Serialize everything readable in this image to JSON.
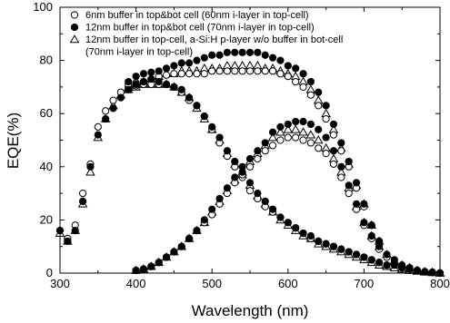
{
  "chart_data": {
    "type": "scatter",
    "xlabel": "Wavelength (nm)",
    "ylabel": "EQE(%)",
    "xlim": [
      300,
      800
    ],
    "ylim": [
      0,
      100
    ],
    "x_ticks": [
      "300",
      "400",
      "500",
      "600",
      "700",
      "800"
    ],
    "y_ticks": [
      "0",
      "20",
      "40",
      "60",
      "80",
      "100"
    ],
    "grid": false,
    "legend_position": "top-left",
    "legend_lines": [
      "6nm buffer in top&bot cell (60nm i-layer in top-cell)",
      "12nm buffer in top&bot cell (70nm i-layer in top-cell)",
      "12nm buffer in top-cell, a-Si:H p-layer w/o buffer in bot-cell",
      "(70nm i-layer in top-cell)"
    ],
    "series": [
      {
        "name": "6nm buffer in top&bot cell (60nm i-layer in top-cell)",
        "marker": "circle-open",
        "top_cell": {
          "x": [
            300,
            310,
            320,
            330,
            340,
            350,
            360,
            370,
            380,
            390,
            400,
            410,
            420,
            430,
            440,
            450,
            460,
            470,
            480,
            490,
            500,
            510,
            520,
            530,
            540,
            550,
            560,
            570,
            580,
            590,
            600,
            610,
            620,
            630,
            640,
            650,
            660,
            670,
            680,
            690,
            700,
            710,
            720,
            730,
            740,
            750,
            760,
            770,
            780,
            790,
            800
          ],
          "y": [
            16,
            13,
            18,
            30,
            41,
            55,
            61,
            65,
            68,
            70,
            70.5,
            71,
            71,
            71,
            71,
            70,
            68,
            65,
            63,
            59,
            54,
            49,
            44,
            40,
            36,
            31,
            28,
            25,
            23,
            21,
            19,
            17,
            15,
            13,
            12,
            11,
            10,
            9,
            8,
            7,
            6,
            5,
            4,
            3,
            3,
            2,
            1.5,
            1,
            0.5,
            0.3,
            0
          ]
        },
        "bottom_cell": {
          "x": [
            400,
            410,
            420,
            430,
            440,
            450,
            460,
            470,
            480,
            490,
            500,
            510,
            520,
            530,
            540,
            550,
            560,
            570,
            580,
            590,
            600,
            610,
            620,
            630,
            640,
            650,
            660,
            670,
            680,
            690,
            700,
            710,
            720,
            730,
            740,
            750,
            760,
            770,
            780,
            790,
            800
          ],
          "y": [
            1,
            1.5,
            2.5,
            4,
            6,
            8,
            10,
            13,
            16,
            19,
            22,
            26,
            30,
            34,
            37,
            40,
            43,
            46,
            48,
            50,
            51,
            51,
            50,
            49,
            47,
            45,
            41,
            36,
            30,
            24,
            18,
            13,
            9,
            6,
            4,
            2.5,
            1.5,
            1,
            0.5,
            0.3,
            0
          ]
        },
        "sum": {
          "x": [
            390,
            400,
            410,
            420,
            430,
            440,
            450,
            460,
            470,
            480,
            490,
            500,
            510,
            520,
            530,
            540,
            550,
            560,
            570,
            580,
            590,
            600,
            610,
            620,
            630,
            640,
            650,
            660,
            670,
            680,
            690,
            700,
            710,
            720
          ],
          "y": [
            71,
            71.5,
            72,
            73,
            74,
            74.5,
            75,
            75,
            75,
            75,
            75,
            76,
            76,
            76,
            76,
            76,
            76,
            76,
            76,
            76,
            75,
            74,
            72,
            70,
            67,
            63,
            58,
            52,
            46,
            40,
            32,
            25,
            18,
            12
          ]
        }
      },
      {
        "name": "12nm buffer in top&bot cell (70nm i-layer in top-cell)",
        "marker": "circle-filled",
        "top_cell": {
          "x": [
            300,
            310,
            320,
            330,
            340,
            350,
            360,
            370,
            380,
            390,
            400,
            410,
            420,
            430,
            440,
            450,
            460,
            470,
            480,
            490,
            500,
            510,
            520,
            530,
            540,
            550,
            560,
            570,
            580,
            590,
            600,
            610,
            620,
            630,
            640,
            650,
            660,
            670,
            680,
            690,
            700,
            710,
            720,
            730,
            740,
            750,
            760,
            770,
            780,
            790,
            800
          ],
          "y": [
            16,
            12,
            16,
            27,
            40,
            52,
            58,
            62,
            66,
            69,
            71,
            72,
            73,
            72,
            71,
            70,
            69,
            66,
            63,
            59,
            55,
            51,
            46,
            42,
            38,
            34,
            30,
            27,
            24,
            21,
            19,
            17,
            15,
            14,
            12,
            11,
            10,
            9,
            8,
            7,
            6,
            5,
            4,
            3,
            3,
            2,
            1.5,
            1,
            0.5,
            0.3,
            0
          ]
        },
        "bottom_cell": {
          "x": [
            400,
            410,
            420,
            430,
            440,
            450,
            460,
            470,
            480,
            490,
            500,
            510,
            520,
            530,
            540,
            550,
            560,
            570,
            580,
            590,
            600,
            610,
            620,
            630,
            640,
            650,
            660,
            670,
            680,
            690,
            700,
            710,
            720,
            730,
            740,
            750,
            760,
            770,
            780,
            790,
            800
          ],
          "y": [
            1,
            1.5,
            2.5,
            4,
            6,
            8,
            10,
            13,
            16,
            20,
            24,
            28,
            32,
            36,
            40,
            43,
            46,
            49,
            53,
            55,
            56,
            57,
            57,
            56,
            54,
            51,
            46,
            40,
            33,
            26,
            19,
            14,
            10,
            7,
            5,
            3,
            2,
            1,
            0.5,
            0.3,
            0
          ]
        },
        "sum": {
          "x": [
            390,
            400,
            410,
            420,
            430,
            440,
            450,
            460,
            470,
            480,
            490,
            500,
            510,
            520,
            530,
            540,
            550,
            560,
            570,
            580,
            590,
            600,
            610,
            620,
            630,
            640,
            650,
            660,
            670,
            680,
            690,
            700,
            710,
            720
          ],
          "y": [
            72,
            74,
            75,
            75.5,
            76,
            77,
            78,
            79,
            79,
            80,
            81,
            82,
            82,
            83,
            83,
            83,
            83,
            83,
            82,
            81,
            80,
            78,
            77,
            75,
            72,
            68,
            63,
            56,
            49,
            42,
            34,
            26,
            18,
            12
          ]
        }
      },
      {
        "name": "12nm buffer in top-cell, a-Si:H p-layer w/o buffer in bot-cell (70nm i-layer in top-cell)",
        "marker": "triangle-open",
        "top_cell": {
          "x": [
            300,
            310,
            320,
            330,
            340,
            350,
            360,
            370,
            380,
            390,
            400,
            410,
            420,
            430,
            440,
            450,
            460,
            470,
            480,
            490,
            500,
            510,
            520,
            530,
            540,
            550,
            560,
            570,
            580,
            590,
            600,
            610,
            620,
            630,
            640,
            650,
            660,
            670,
            680,
            690,
            700,
            710,
            720,
            730,
            740,
            750,
            760,
            770,
            780,
            790,
            800
          ],
          "y": [
            15,
            12,
            16,
            26,
            38,
            51,
            58,
            63,
            67,
            69,
            70,
            71,
            71,
            71,
            71,
            70,
            68,
            66,
            62,
            58,
            54,
            50,
            45,
            41,
            37,
            33,
            29,
            26,
            23,
            20,
            18,
            16,
            14,
            13,
            11,
            10,
            9,
            8,
            7,
            6,
            5,
            4,
            3,
            2.5,
            2,
            1.5,
            1,
            0.7,
            0.4,
            0.2,
            0
          ]
        },
        "bottom_cell": {
          "x": [
            400,
            410,
            420,
            430,
            440,
            450,
            460,
            470,
            480,
            490,
            500,
            510,
            520,
            530,
            540,
            550,
            560,
            570,
            580,
            590,
            600,
            610,
            620,
            630,
            640,
            650,
            660,
            670,
            680,
            690,
            700,
            710,
            720,
            730,
            740,
            750,
            760,
            770,
            780,
            790,
            800
          ],
          "y": [
            1,
            1.5,
            2.5,
            4,
            6,
            8,
            10,
            13,
            16,
            19,
            23,
            27,
            31,
            35,
            38,
            42,
            45,
            48,
            51,
            53,
            54,
            54,
            53,
            52,
            50,
            47,
            43,
            38,
            32,
            25,
            19,
            14,
            10,
            7,
            4.5,
            3,
            2,
            1,
            0.5,
            0.3,
            0
          ]
        },
        "sum": {
          "x": [
            390,
            400,
            410,
            420,
            430,
            440,
            450,
            460,
            470,
            480,
            490,
            500,
            510,
            520,
            530,
            540,
            550,
            560,
            570,
            580,
            590,
            600,
            610,
            620,
            630,
            640,
            650,
            660,
            670,
            680,
            690,
            700,
            710,
            720
          ],
          "y": [
            70,
            71,
            72,
            73,
            74,
            75,
            75,
            76,
            76,
            76,
            77,
            77,
            77,
            78,
            78,
            78,
            78,
            78,
            77,
            77,
            76,
            75,
            74,
            72,
            69,
            65,
            60,
            54,
            47,
            41,
            33,
            26,
            18,
            12
          ]
        }
      }
    ]
  }
}
